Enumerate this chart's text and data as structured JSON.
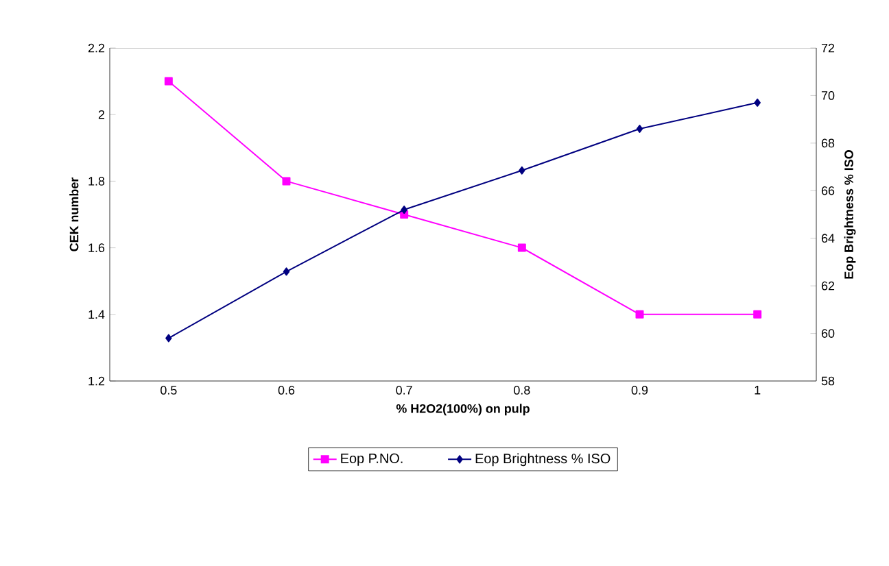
{
  "chart_data": {
    "type": "line",
    "xlabel": "% H2O2(100%) on pulp",
    "ylabel": "CEK number",
    "y2label": "Eop Brightness % ISO",
    "categories": [
      "0.5",
      "0.6",
      "0.7",
      "0.8",
      "0.9",
      "1"
    ],
    "series": [
      {
        "name": "Eop P.NO.",
        "color": "#ff00ff",
        "marker": "square",
        "values": [
          2.1,
          1.8,
          1.7,
          1.6,
          1.4,
          1.4
        ]
      },
      {
        "name": "Eop Brightness % ISO",
        "color": "#000080",
        "marker": "diamond",
        "axis": "y2",
        "values": [
          59.8,
          62.6,
          65.2,
          66.85,
          68.6,
          69.7
        ]
      }
    ],
    "ylim": [
      1.2,
      2.2
    ],
    "yticks": [
      1.2,
      1.4,
      1.6,
      1.8,
      2,
      2.2
    ],
    "y2lim": [
      58,
      72
    ],
    "y2ticks": [
      58,
      60,
      62,
      64,
      66,
      68,
      70,
      72
    ],
    "legend": "bottom",
    "grid": false
  }
}
